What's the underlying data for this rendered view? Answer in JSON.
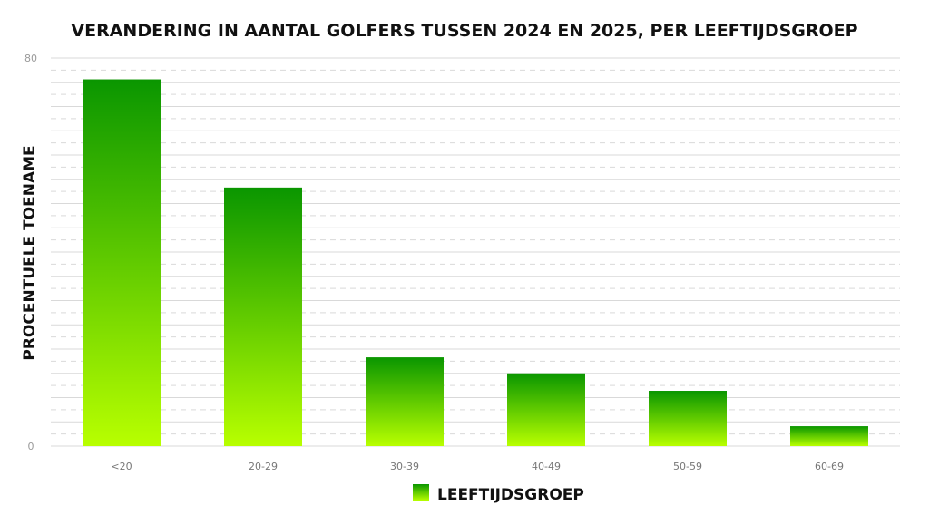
{
  "chart_data": {
    "type": "bar",
    "title": "VERANDERING IN AANTAL GOLFERS TUSSEN 2024 EN 2025, PER LEEFTIJDSGROEP",
    "xlabel": "",
    "ylabel": "PROCENTUELE TOENAME",
    "categories": [
      "<20",
      "20-29",
      "30-39",
      "40-49",
      "50-59",
      "60-69"
    ],
    "series": [
      {
        "name": "LEEFTIJDSGROEP",
        "values": [
          75.6,
          53.3,
          18.3,
          15.0,
          11.4,
          4.1
        ]
      }
    ],
    "ylim": [
      0,
      80
    ],
    "yticks": [
      0,
      80
    ],
    "grid": true,
    "legend": "bottom-center",
    "colors": {
      "bar_top": "#0a9600",
      "bar_bottom": "#b8ff00",
      "grid": "#d9d9d9"
    }
  }
}
